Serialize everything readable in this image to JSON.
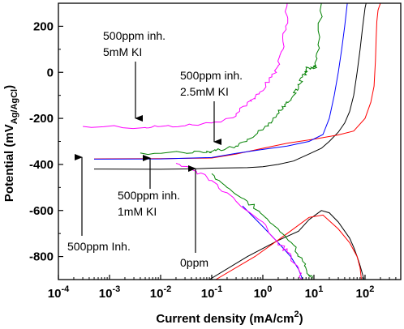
{
  "chart_data": {
    "type": "line",
    "title": "",
    "xlabel": {
      "main": "Current density (mA/cm",
      "sup": "2",
      "close": ")"
    },
    "ylabel": {
      "main": "Potential (mV",
      "sub": "Ag/AgCl",
      "close": ")"
    },
    "x_scale": "log",
    "xlim": [
      0.0001,
      500
    ],
    "ylim": [
      -900,
      300
    ],
    "grid": false,
    "x_ticks": [
      {
        "value": 0.0001,
        "base": "10",
        "exp": "-4"
      },
      {
        "value": 0.001,
        "base": "10",
        "exp": "-3"
      },
      {
        "value": 0.01,
        "base": "10",
        "exp": "-2"
      },
      {
        "value": 0.1,
        "base": "10",
        "exp": "-1"
      },
      {
        "value": 1,
        "base": "10",
        "exp": "0"
      },
      {
        "value": 10,
        "base": "10",
        "exp": "1"
      },
      {
        "value": 100,
        "base": "10",
        "exp": "2"
      }
    ],
    "y_ticks": [
      {
        "value": 200,
        "label": "200"
      },
      {
        "value": 0,
        "label": "0"
      },
      {
        "value": -200,
        "label": "-200"
      },
      {
        "value": -400,
        "label": "-400"
      },
      {
        "value": -600,
        "label": "-600"
      },
      {
        "value": -800,
        "label": "-800"
      }
    ],
    "series": [
      {
        "color": "#000000",
        "noisy": false,
        "points": [
          [
            0.09,
            -900
          ],
          [
            0.5,
            -800
          ],
          [
            2,
            -730
          ],
          [
            5,
            -690
          ],
          [
            8,
            -640
          ],
          [
            14,
            -600
          ],
          [
            20,
            -610
          ],
          [
            30,
            -650
          ],
          [
            50,
            -720
          ],
          [
            60,
            -760
          ],
          [
            70,
            -800
          ],
          [
            80,
            -840
          ],
          [
            90,
            -880
          ],
          [
            95,
            -900
          ],
          null,
          [
            0.0005,
            -420
          ],
          [
            0.01,
            -421
          ],
          [
            0.05,
            -419
          ],
          [
            0.1,
            -416
          ],
          [
            0.5,
            -414
          ],
          [
            1,
            -410
          ],
          [
            2,
            -400
          ],
          [
            4,
            -385
          ],
          [
            8,
            -355
          ],
          [
            14,
            -330
          ],
          [
            20,
            -300
          ],
          [
            30,
            -260
          ],
          [
            40,
            -220
          ],
          [
            50,
            -170
          ],
          [
            60,
            -100
          ],
          [
            70,
            0
          ],
          [
            80,
            100
          ],
          [
            90,
            200
          ],
          [
            100,
            280
          ],
          [
            105,
            300
          ]
        ]
      },
      {
        "color": "#ff0000",
        "noisy": false,
        "points": [
          [
            0.12,
            -900
          ],
          [
            0.7,
            -800
          ],
          [
            3,
            -700
          ],
          [
            8,
            -630
          ],
          [
            15,
            -620
          ],
          [
            30,
            -680
          ],
          [
            50,
            -740
          ],
          [
            70,
            -800
          ],
          [
            80,
            -850
          ],
          [
            85,
            -900
          ],
          null,
          [
            0.0005,
            -376
          ],
          [
            0.01,
            -375
          ],
          [
            0.1,
            -372
          ],
          [
            0.3,
            -355
          ],
          [
            1,
            -330
          ],
          [
            3,
            -308
          ],
          [
            10,
            -290
          ],
          [
            30,
            -272
          ],
          [
            60,
            -255
          ],
          [
            100,
            -200
          ],
          [
            130,
            -130
          ],
          [
            150,
            -60
          ],
          [
            160,
            50
          ],
          [
            165,
            150
          ],
          [
            170,
            220
          ],
          [
            180,
            270
          ],
          [
            200,
            300
          ]
        ]
      },
      {
        "color": "#0000ff",
        "noisy": false,
        "points": [
          [
            0.4,
            -580
          ],
          [
            1,
            -670
          ],
          [
            2,
            -740
          ],
          [
            3.5,
            -800
          ],
          [
            5,
            -855
          ],
          [
            6,
            -900
          ],
          null,
          [
            0.0005,
            -377
          ],
          [
            0.01,
            -376
          ],
          [
            0.1,
            -370
          ],
          [
            0.3,
            -352
          ],
          [
            1,
            -335
          ],
          [
            3,
            -320
          ],
          [
            8,
            -300
          ],
          [
            15,
            -270
          ],
          [
            20,
            -200
          ],
          [
            25,
            -100
          ],
          [
            30,
            0
          ],
          [
            35,
            100
          ],
          [
            40,
            200
          ],
          [
            45,
            300
          ]
        ]
      },
      {
        "color": "#008000",
        "noisy": true,
        "points": [
          [
            0.1,
            -440
          ],
          [
            0.2,
            -500
          ],
          [
            0.5,
            -560
          ],
          [
            1,
            -620
          ],
          [
            2,
            -680
          ],
          [
            4,
            -750
          ],
          [
            6,
            -820
          ],
          [
            8,
            -880
          ],
          [
            9,
            -900
          ],
          null,
          [
            0.004,
            -350
          ],
          [
            0.03,
            -350
          ],
          [
            0.08,
            -348
          ],
          [
            0.12,
            -340
          ],
          [
            0.3,
            -320
          ],
          [
            0.5,
            -290
          ],
          [
            1,
            -250
          ],
          [
            1.5,
            -220
          ],
          [
            2,
            -180
          ],
          [
            2.5,
            -150
          ],
          [
            3,
            -130
          ],
          [
            4,
            -100
          ],
          [
            5,
            -60
          ],
          [
            6,
            -20
          ],
          [
            7,
            0
          ],
          [
            7.2,
            20
          ],
          [
            9,
            20
          ],
          [
            10,
            25
          ],
          [
            11,
            20
          ],
          [
            12,
            120
          ],
          [
            14,
            300
          ]
        ]
      },
      {
        "color": "#ff00ff",
        "noisy": true,
        "points": [
          [
            0.02,
            -395
          ],
          [
            0.05,
            -430
          ],
          [
            0.1,
            -470
          ],
          [
            0.3,
            -560
          ],
          [
            1,
            -650
          ],
          [
            2,
            -740
          ],
          [
            3,
            -780
          ],
          [
            5,
            -850
          ],
          [
            6,
            -900
          ],
          null,
          [
            0.0003,
            -235
          ],
          [
            0.005,
            -240
          ],
          [
            0.01,
            -235
          ],
          [
            0.03,
            -232
          ],
          [
            0.1,
            -220
          ],
          [
            0.3,
            -190
          ],
          [
            0.5,
            -130
          ],
          [
            0.7,
            -110
          ],
          [
            1,
            -80
          ],
          [
            1.5,
            -20
          ],
          [
            2,
            30
          ],
          [
            2.5,
            100
          ],
          [
            2.8,
            200
          ],
          [
            3,
            300
          ]
        ]
      }
    ],
    "annotations": [
      {
        "lines": [
          "500ppm inh.",
          "5mM KI"
        ]
      },
      {
        "lines": [
          "500ppm inh.",
          "2.5mM KI"
        ]
      },
      {
        "lines": [
          "500ppm inh.",
          "1mM KI"
        ]
      },
      {
        "lines": [
          "500ppm Inh."
        ]
      },
      {
        "lines": [
          "0ppm"
        ]
      }
    ]
  }
}
